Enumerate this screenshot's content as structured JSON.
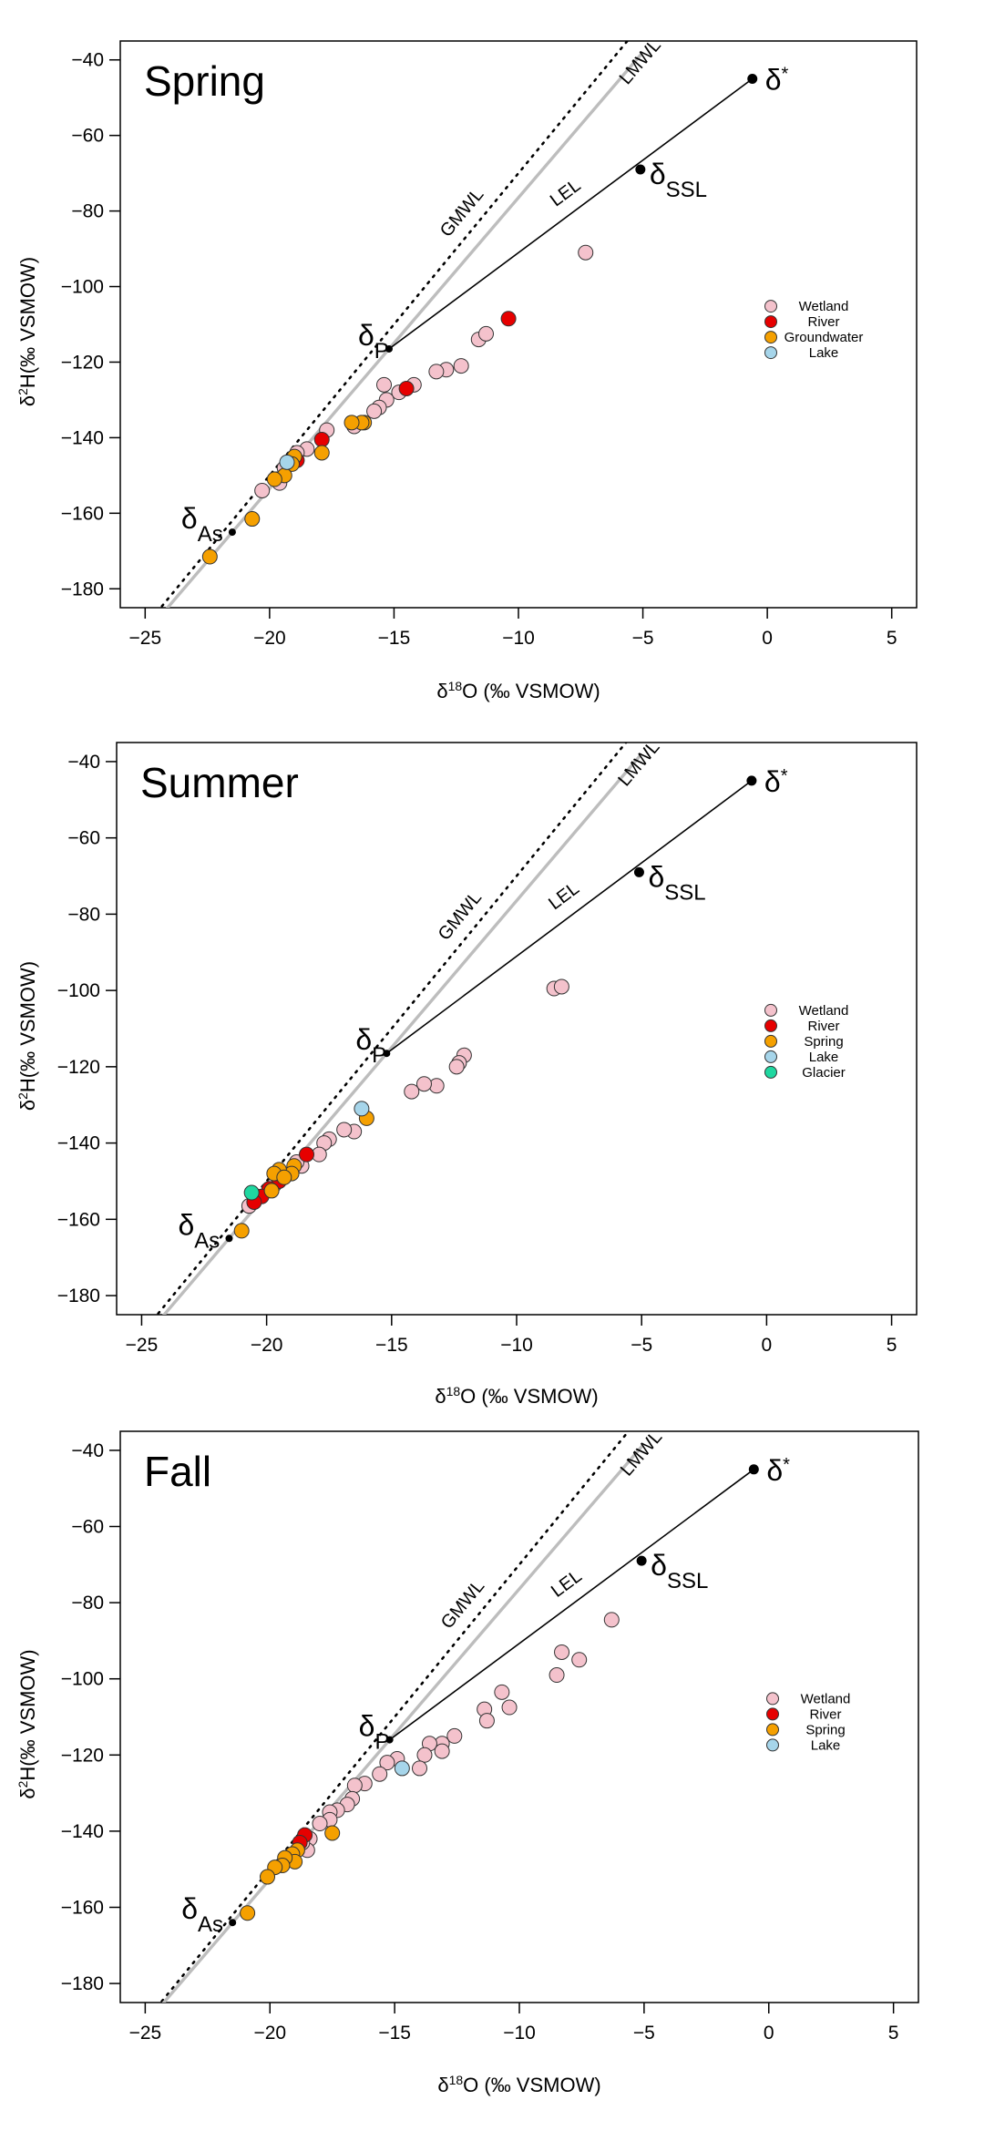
{
  "chart_data": [
    {
      "type": "scatter",
      "title": "Spring",
      "xlabel": "δ18O (‰ VSMOW)",
      "ylabel": "δ2H(‰ VSMOW)",
      "xlim": [
        -26,
        6
      ],
      "ylim": [
        -185,
        -35
      ],
      "xticks": [
        -25,
        -20,
        -15,
        -10,
        -5,
        0,
        5
      ],
      "yticks": [
        -40,
        -60,
        -80,
        -100,
        -120,
        -140,
        -160,
        -180
      ],
      "grid": false,
      "legend_position": "right",
      "line_labels": {
        "gmwl": "GMWL",
        "lmwl": "LMWL",
        "lel": "LEL"
      },
      "points_labels": {
        "star": "δ*",
        "ssl": "δSSL",
        "p": "δP",
        "as": "δAs"
      },
      "key_points": {
        "star": [
          -0.6,
          -45
        ],
        "ssl": [
          -5.1,
          -69
        ],
        "p": [
          -15.2,
          -116.5
        ],
        "as": [
          -21.5,
          -165
        ]
      },
      "series": [
        {
          "name": "Wetland",
          "color": "#f4c2cc",
          "points": [
            [
              -7.3,
              -91
            ],
            [
              -11.6,
              -114
            ],
            [
              -11.3,
              -112.5
            ],
            [
              -12.3,
              -121
            ],
            [
              -12.9,
              -122
            ],
            [
              -13.3,
              -122.5
            ],
            [
              -14.2,
              -126
            ],
            [
              -14.8,
              -128
            ],
            [
              -15.4,
              -126
            ],
            [
              -15.3,
              -130
            ],
            [
              -15.6,
              -132
            ],
            [
              -15.8,
              -133
            ],
            [
              -16.6,
              -137
            ],
            [
              -17.7,
              -138
            ],
            [
              -18.5,
              -143
            ],
            [
              -18.9,
              -144
            ],
            [
              -19.4,
              -148
            ],
            [
              -19.7,
              -151
            ],
            [
              -20.3,
              -154
            ],
            [
              -19.6,
              -152
            ]
          ]
        },
        {
          "name": "River",
          "color": "#e60000",
          "points": [
            [
              -10.4,
              -108.5
            ],
            [
              -14.5,
              -127
            ],
            [
              -17.9,
              -140.5
            ],
            [
              -18.9,
              -146
            ]
          ]
        },
        {
          "name": "Groundwater",
          "color": "#f5a000",
          "points": [
            [
              -16.2,
              -136
            ],
            [
              -16.3,
              -136
            ],
            [
              -16.7,
              -136
            ],
            [
              -17.9,
              -144
            ],
            [
              -19.0,
              -145
            ],
            [
              -19.1,
              -147
            ],
            [
              -19.4,
              -150
            ],
            [
              -19.8,
              -151
            ],
            [
              -20.7,
              -161.5
            ],
            [
              -22.4,
              -171.5
            ]
          ]
        },
        {
          "name": "Lake",
          "color": "#a6d5ea",
          "points": [
            [
              -19.3,
              -146.5
            ]
          ]
        }
      ]
    },
    {
      "type": "scatter",
      "title": "Summer",
      "xlabel": "δ18O (‰ VSMOW)",
      "ylabel": "δ2H(‰ VSMOW)",
      "xlim": [
        -26,
        6
      ],
      "ylim": [
        -185,
        -35
      ],
      "xticks": [
        -25,
        -20,
        -15,
        -10,
        -5,
        0,
        5
      ],
      "yticks": [
        -40,
        -60,
        -80,
        -100,
        -120,
        -140,
        -160,
        -180
      ],
      "grid": false,
      "legend_position": "right",
      "line_labels": {
        "gmwl": "GMWL",
        "lmwl": "LMWL",
        "lel": "LEL"
      },
      "points_labels": {
        "star": "δ*",
        "ssl": "δSSL",
        "p": "δP",
        "as": "δAs"
      },
      "key_points": {
        "star": [
          -0.6,
          -45
        ],
        "ssl": [
          -5.1,
          -69
        ],
        "p": [
          -15.2,
          -116.5
        ],
        "as": [
          -21.5,
          -165
        ]
      },
      "series": [
        {
          "name": "Wetland",
          "color": "#f4c2cc",
          "points": [
            [
              -8.5,
              -99.5
            ],
            [
              -8.2,
              -99
            ],
            [
              -12.1,
              -117
            ],
            [
              -12.3,
              -119
            ],
            [
              -12.4,
              -120
            ],
            [
              -13.2,
              -125
            ],
            [
              -13.7,
              -124.5
            ],
            [
              -14.2,
              -126.5
            ],
            [
              -16.5,
              -137
            ],
            [
              -16.9,
              -136.5
            ],
            [
              -17.5,
              -139
            ],
            [
              -17.7,
              -140
            ],
            [
              -17.9,
              -143
            ],
            [
              -18.6,
              -146
            ],
            [
              -18.8,
              -145
            ],
            [
              -19.3,
              -149
            ],
            [
              -19.7,
              -151
            ],
            [
              -20.4,
              -154
            ],
            [
              -20.7,
              -156.5
            ]
          ]
        },
        {
          "name": "River",
          "color": "#e60000",
          "points": [
            [
              -18.4,
              -143
            ],
            [
              -19.5,
              -150
            ],
            [
              -19.9,
              -152
            ],
            [
              -20.2,
              -154
            ],
            [
              -20.5,
              -155.5
            ]
          ]
        },
        {
          "name": "Spring",
          "color": "#f5a000",
          "points": [
            [
              -16.0,
              -133.5
            ],
            [
              -18.9,
              -146
            ],
            [
              -19.0,
              -148
            ],
            [
              -19.5,
              -147
            ],
            [
              -19.7,
              -148
            ],
            [
              -19.3,
              -149
            ],
            [
              -19.8,
              -152.5
            ],
            [
              -21.0,
              -163
            ]
          ]
        },
        {
          "name": "Lake",
          "color": "#a6d5ea",
          "points": [
            [
              -16.2,
              -131
            ]
          ]
        },
        {
          "name": "Glacier",
          "color": "#1fd7a0",
          "points": [
            [
              -20.6,
              -153
            ]
          ]
        }
      ]
    },
    {
      "type": "scatter",
      "title": "Fall",
      "xlabel": "δ18O (‰ VSMOW)",
      "ylabel": "δ2H(‰ VSMOW)",
      "xlim": [
        -26,
        6
      ],
      "ylim": [
        -185,
        -35
      ],
      "xticks": [
        -25,
        -20,
        -15,
        -10,
        -5,
        0,
        5
      ],
      "yticks": [
        -40,
        -60,
        -80,
        -100,
        -120,
        -140,
        -160,
        -180
      ],
      "grid": false,
      "legend_position": "right",
      "line_labels": {
        "gmwl": "GMWL",
        "lmwl": "LMWL",
        "lel": "LEL"
      },
      "points_labels": {
        "star": "δ*",
        "ssl": "δSSL",
        "p": "δP",
        "as": "δAs"
      },
      "key_points": {
        "star": [
          -0.6,
          -45
        ],
        "ssl": [
          -5.1,
          -69
        ],
        "p": [
          -15.2,
          -116
        ],
        "as": [
          -21.5,
          -164
        ]
      },
      "series": [
        {
          "name": "Wetland",
          "color": "#f4c2cc",
          "points": [
            [
              -6.3,
              -84.5
            ],
            [
              -8.3,
              -93
            ],
            [
              -7.6,
              -95
            ],
            [
              -8.5,
              -99
            ],
            [
              -10.7,
              -103.5
            ],
            [
              -10.4,
              -107.5
            ],
            [
              -11.4,
              -108
            ],
            [
              -11.3,
              -111
            ],
            [
              -12.6,
              -115
            ],
            [
              -13.1,
              -117
            ],
            [
              -13.6,
              -117
            ],
            [
              -13.1,
              -119
            ],
            [
              -13.8,
              -120
            ],
            [
              -14.0,
              -123.5
            ],
            [
              -14.9,
              -121
            ],
            [
              -15.3,
              -122
            ],
            [
              -15.6,
              -125
            ],
            [
              -16.2,
              -127.5
            ],
            [
              -16.6,
              -128
            ],
            [
              -16.7,
              -131.5
            ],
            [
              -16.9,
              -133
            ],
            [
              -17.3,
              -134.5
            ],
            [
              -17.6,
              -135
            ],
            [
              -17.6,
              -137
            ],
            [
              -18.0,
              -138
            ],
            [
              -18.4,
              -142
            ],
            [
              -18.5,
              -145
            ],
            [
              -18.7,
              -143
            ]
          ]
        },
        {
          "name": "River",
          "color": "#e60000",
          "points": [
            [
              -18.6,
              -141
            ],
            [
              -18.8,
              -143
            ]
          ]
        },
        {
          "name": "Spring",
          "color": "#f5a000",
          "points": [
            [
              -17.5,
              -140.5
            ],
            [
              -18.9,
              -145
            ],
            [
              -19.1,
              -146
            ],
            [
              -19.0,
              -148
            ],
            [
              -19.4,
              -147
            ],
            [
              -19.5,
              -149
            ],
            [
              -19.8,
              -149.5
            ],
            [
              -20.1,
              -152
            ],
            [
              -20.9,
              -161.5
            ]
          ]
        },
        {
          "name": "Lake",
          "color": "#a6d5ea",
          "points": [
            [
              -14.7,
              -123.5
            ]
          ]
        }
      ]
    }
  ]
}
